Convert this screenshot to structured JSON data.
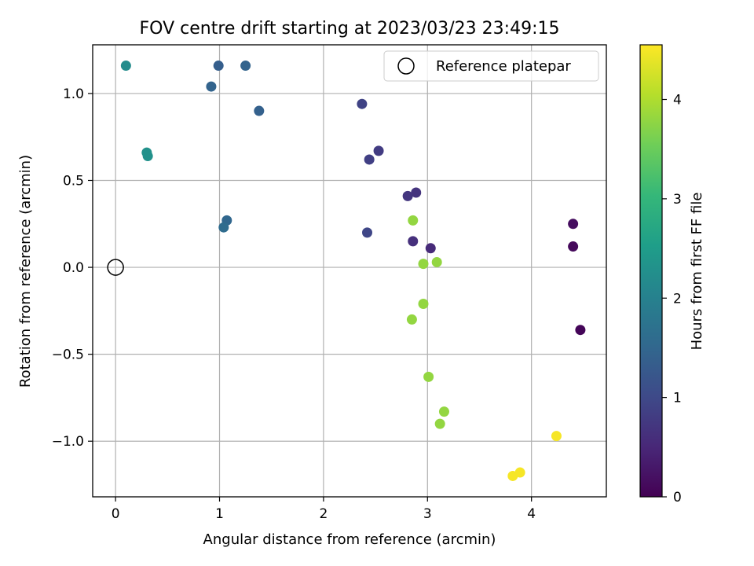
{
  "chart_data": {
    "type": "scatter",
    "title": "FOV centre drift starting at 2023/03/23 23:49:15",
    "xlabel": "Angular distance from reference (arcmin)",
    "ylabel": "Rotation from reference (arcmin)",
    "xlim": [
      -0.22,
      4.72
    ],
    "ylim": [
      -1.32,
      1.28
    ],
    "xticks": [
      0,
      1,
      2,
      3,
      4
    ],
    "yticks": [
      -1.0,
      -0.5,
      0.0,
      0.5,
      1.0
    ],
    "xtick_labels": [
      "0",
      "1",
      "2",
      "3",
      "4"
    ],
    "ytick_labels": [
      "−1.0",
      "−0.5",
      "0.0",
      "0.5",
      "1.0"
    ],
    "grid": true,
    "legend": {
      "position": "upper right",
      "entries": [
        "Reference platepar"
      ]
    },
    "reference_point": {
      "x": 0,
      "y": 0,
      "label": "Reference platepar"
    },
    "colorbar": {
      "label": "Hours from first FF file",
      "colormap": "viridis",
      "range": [
        0,
        4.55
      ],
      "ticks": [
        0,
        1,
        2,
        3,
        4
      ],
      "tick_labels": [
        "0",
        "1",
        "2",
        "3",
        "4"
      ]
    },
    "points": [
      {
        "x": 4.47,
        "y": -0.36,
        "hours": 0.05
      },
      {
        "x": 4.4,
        "y": 0.12,
        "hours": 0.1
      },
      {
        "x": 4.4,
        "y": 0.25,
        "hours": 0.15
      },
      {
        "x": 3.03,
        "y": 0.11,
        "hours": 0.55
      },
      {
        "x": 2.86,
        "y": 0.15,
        "hours": 0.62
      },
      {
        "x": 2.89,
        "y": 0.43,
        "hours": 0.68
      },
      {
        "x": 2.81,
        "y": 0.41,
        "hours": 0.72
      },
      {
        "x": 2.53,
        "y": 0.67,
        "hours": 0.8
      },
      {
        "x": 2.44,
        "y": 0.62,
        "hours": 0.85
      },
      {
        "x": 2.37,
        "y": 0.94,
        "hours": 0.9
      },
      {
        "x": 2.42,
        "y": 0.2,
        "hours": 0.95
      },
      {
        "x": 1.38,
        "y": 0.9,
        "hours": 1.4
      },
      {
        "x": 1.25,
        "y": 1.16,
        "hours": 1.45
      },
      {
        "x": 0.99,
        "y": 1.16,
        "hours": 1.35
      },
      {
        "x": 0.92,
        "y": 1.04,
        "hours": 1.45
      },
      {
        "x": 1.07,
        "y": 0.27,
        "hours": 1.5
      },
      {
        "x": 1.04,
        "y": 0.23,
        "hours": 1.6
      },
      {
        "x": 0.1,
        "y": 1.16,
        "hours": 2.2
      },
      {
        "x": 0.3,
        "y": 0.66,
        "hours": 2.3
      },
      {
        "x": 0.31,
        "y": 0.64,
        "hours": 2.3
      },
      {
        "x": 2.86,
        "y": 0.27,
        "hours": 3.8
      },
      {
        "x": 2.96,
        "y": 0.02,
        "hours": 3.8
      },
      {
        "x": 3.09,
        "y": 0.03,
        "hours": 3.8
      },
      {
        "x": 2.96,
        "y": -0.21,
        "hours": 3.8
      },
      {
        "x": 2.85,
        "y": -0.3,
        "hours": 3.8
      },
      {
        "x": 3.01,
        "y": -0.63,
        "hours": 3.8
      },
      {
        "x": 3.16,
        "y": -0.83,
        "hours": 3.8
      },
      {
        "x": 3.12,
        "y": -0.9,
        "hours": 3.8
      },
      {
        "x": 4.24,
        "y": -0.97,
        "hours": 4.5
      },
      {
        "x": 3.89,
        "y": -1.18,
        "hours": 4.5
      },
      {
        "x": 3.82,
        "y": -1.2,
        "hours": 4.5
      }
    ]
  }
}
